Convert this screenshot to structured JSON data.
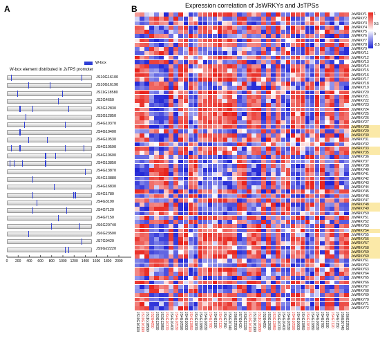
{
  "panel_a": {
    "letter": "A",
    "legend_label": "W-box",
    "title_prefix": "W-box element distributed in ",
    "title_gene": "JsTPS",
    "title_suffix": " promoter",
    "bar_color": "#2f3fd6",
    "rows": [
      {
        "gene": "JS10G16100",
        "wbox": [
          0.05,
          0.88
        ]
      },
      {
        "gene": "JS10G16190",
        "wbox": [
          0.25,
          0.5
        ]
      },
      {
        "gene": "JS11G18580",
        "wbox": [
          0.12,
          0.65
        ]
      },
      {
        "gene": "JS2G4650",
        "wbox": [
          0.6
        ]
      },
      {
        "gene": "JS3G12830",
        "wbox": [
          0.15,
          0.3,
          0.72
        ]
      },
      {
        "gene": "JS3G12850",
        "wbox": [
          0.22
        ]
      },
      {
        "gene": "JS4G10370",
        "wbox": [
          0.2,
          0.68
        ]
      },
      {
        "gene": "JS4G10400",
        "wbox": [
          0.15
        ]
      },
      {
        "gene": "JS4G10530",
        "wbox": [
          0.25,
          0.47
        ]
      },
      {
        "gene": "JS4G10590",
        "wbox": [
          0.05,
          0.15,
          0.68,
          0.9
        ]
      },
      {
        "gene": "JS4G10600",
        "wbox": [
          0.45,
          0.57
        ]
      },
      {
        "gene": "JS4G13850",
        "wbox": [
          0.03,
          0.08,
          0.18,
          0.45
        ]
      },
      {
        "gene": "JS4G13870",
        "wbox": [
          0.92
        ]
      },
      {
        "gene": "JS4G13880",
        "wbox": [
          0.3
        ]
      },
      {
        "gene": "JS4G16830",
        "wbox": [
          0.55
        ]
      },
      {
        "gene": "JS4G1780",
        "wbox": [
          0.3,
          0.78,
          0.8
        ]
      },
      {
        "gene": "JS4G3190",
        "wbox": [
          0.35
        ]
      },
      {
        "gene": "JS4G7120",
        "wbox": [
          0.3,
          0.7
        ]
      },
      {
        "gene": "JS4G7150",
        "wbox": [
          0.6
        ]
      },
      {
        "gene": "JS6G20740",
        "wbox": [
          0.52,
          0.85
        ]
      },
      {
        "gene": "JS6G23500",
        "wbox": [
          0.25
        ]
      },
      {
        "gene": "JS7G9420",
        "wbox": [
          0.88
        ]
      },
      {
        "gene": "JS9G22220",
        "wbox": [
          0.68,
          0.72
        ]
      }
    ],
    "axis_ticks": [
      "0",
      "200",
      "400",
      "600",
      "800",
      "1000",
      "1200",
      "1400",
      "1600",
      "1800",
      "2000"
    ],
    "axis_unit": "bp"
  },
  "panel_b": {
    "letter": "B",
    "title": "Expression correlation of JsWRKYs and JsTPSs",
    "colorbar": {
      "ticks": [
        "1",
        "0.5",
        "0",
        "-0.5"
      ],
      "high": "#e8231b",
      "mid": "#ffffff",
      "low": "#1f25d6"
    },
    "highlight_color": "#fbe9a8",
    "row_highlights": [
      26,
      27,
      28,
      31,
      32,
      44,
      45,
      50,
      52,
      53,
      54,
      55,
      56
    ],
    "rows": [
      "JsWRKY1",
      "JsWRKY2",
      "JsWRKY3",
      "JsWRKY4",
      "JsWRKY5",
      "JsWRKY6",
      "JsWRKY7",
      "JsWRKY8",
      "JsWRKY9",
      "JsWRKY11",
      "JsWRKY12",
      "JsWRKY13",
      "JsWRKY14",
      "JsWRKY15",
      "JsWRKY16",
      "JsWRKY17",
      "JsWRKY18",
      "JsWRKY19",
      "JsWRKY20",
      "JsWRKY21",
      "JsWRKY22",
      "JsWRKY23",
      "JsWRKY24",
      "JsWRKY25",
      "JsWRKY26",
      "JsWRKY27",
      "JsWRKY28",
      "JsWRKY29",
      "JsWRKY30",
      "JsWRKY31",
      "JsWRKY32",
      "JsWRKY33",
      "JsWRKY35",
      "JsWRKY36",
      "JsWRKY37",
      "JsWRKY38",
      "JsWRKY40",
      "JsWRKY41",
      "JsWRKY42",
      "JsWRKY43",
      "JsWRKY44",
      "JsWRKY45",
      "JsWRKY46",
      "JsWRKY47",
      "JsWRKY48",
      "JsWRKY49",
      "JsWRKY50",
      "JsWRKY51",
      "JsWRKY52",
      "JsWRKY53",
      "JsWRKY54",
      "JsWRKY55",
      "JsWRKY56",
      "JsWRKY57",
      "JsWRKY58",
      "JsWRKY59",
      "JsWRKY60",
      "JsWRKY61",
      "JsWRKY62",
      "JsWRKY63",
      "JsWRKY64",
      "JsWRKY65",
      "JsWRKY66",
      "JsWRKY67",
      "JsWRKY68",
      "JsWRKY69",
      "JsWRKY70",
      "JsWRKY71",
      "JsWRKY72"
    ],
    "columns": [
      "JS10G16100",
      "JS10G16190",
      "JS11G18580",
      "JS2G4650",
      "JS3G12830",
      "JS3G12850",
      "JS4G10370",
      "JS4G10400",
      "JS4G10530",
      "JS4G10590",
      "JS4G10600",
      "JS4G13850",
      "JS4G13870",
      "JS4G13880",
      "JS4G16830",
      "JS4G1780",
      "JS4G3190",
      "JS4G7120",
      "JS4G7150",
      "JS6G20740",
      "JS6G23500",
      "JS7G9420",
      "JS9G22220",
      "JS10G16100",
      "JS10G16190",
      "JS11G18580",
      "JS2G4650",
      "JS3G12830",
      "JS3G12850",
      "JS4G10370",
      "JS4G10400",
      "JS4G10530",
      "JS4G10590",
      "JS4G10600",
      "JS4G13850",
      "JS4G13870",
      "JS4G13880",
      "JS4G16830",
      "JS4G1780",
      "JS4G3190",
      "JS4G7120",
      "JS4G7150",
      "JS6G20740",
      "JS6G23500"
    ],
    "column_label_colors": [
      "#000000",
      "#e8231b",
      "#000000",
      "#e8231b",
      "#000000",
      "#000000",
      "#e8231b",
      "#000000",
      "#e8231b",
      "#000000",
      "#000000",
      "#e8231b",
      "#000000",
      "#000000",
      "#000000",
      "#e8231b",
      "#000000",
      "#e8231b",
      "#000000",
      "#000000",
      "#000000",
      "#000000",
      "#000000",
      "#e8231b",
      "#000000",
      "#e8231b",
      "#000000",
      "#000000",
      "#e8231b",
      "#000000",
      "#000000",
      "#000000",
      "#e8231b",
      "#000000",
      "#000000",
      "#e8231b",
      "#000000",
      "#000000",
      "#000000",
      "#000000",
      "#e8231b",
      "#000000",
      "#000000",
      "#000000"
    ]
  }
}
